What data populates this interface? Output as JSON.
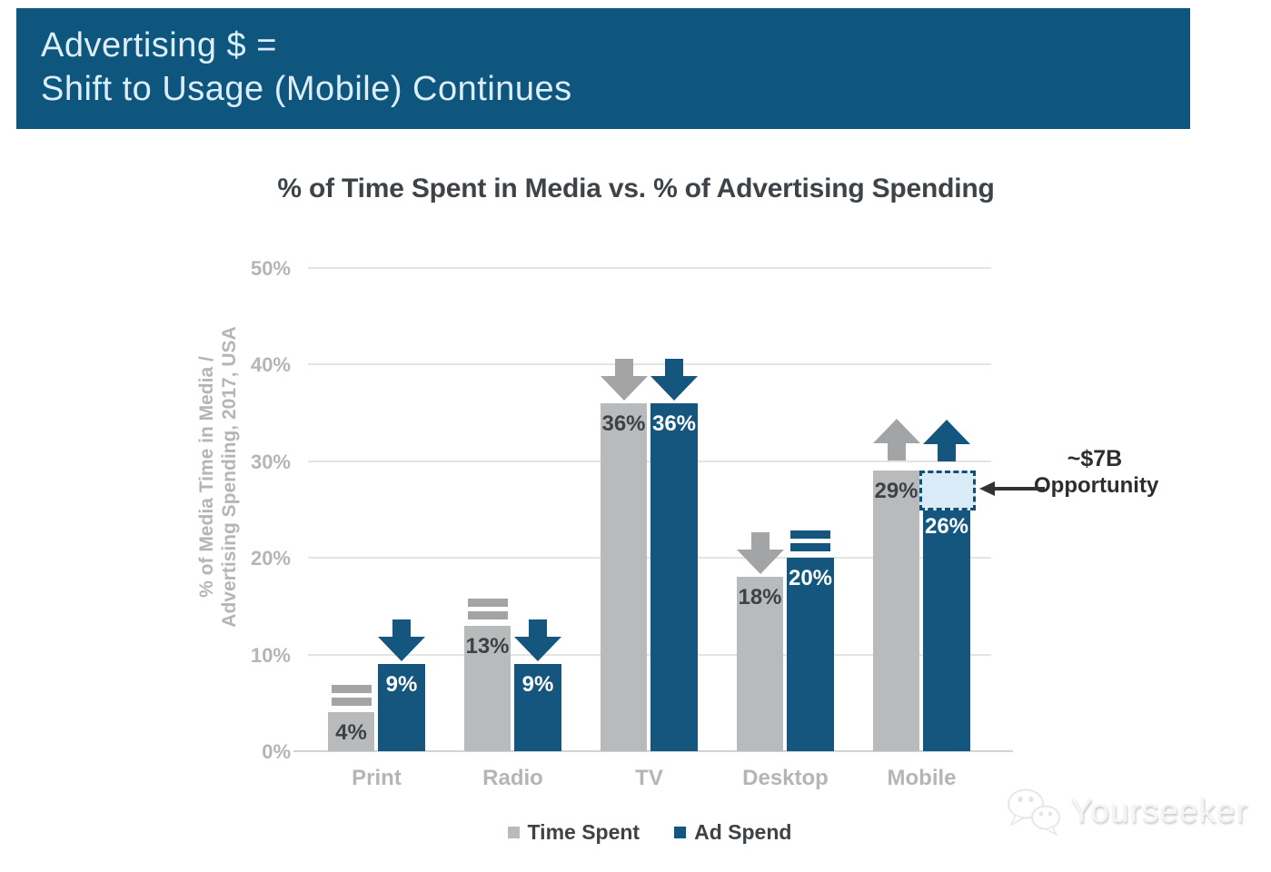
{
  "header": {
    "line1": "Advertising $ =",
    "line2": "Shift to Usage (Mobile) Continues",
    "background": "#0f567f",
    "text_color": "#dceefa"
  },
  "chart_data": {
    "type": "bar",
    "title": "% of Time Spent in Media vs. % of Advertising Spending",
    "ylabel": "% of Media Time in Media / Advertising Spending, 2017, USA",
    "ylabel_lines": [
      "% of Media Time in Media /",
      "Advertising Spending, 2017, USA"
    ],
    "categories": [
      "Print",
      "Radio",
      "TV",
      "Desktop",
      "Mobile"
    ],
    "series": [
      {
        "name": "Time Spent",
        "color": "#b9babb",
        "values": [
          4,
          13,
          36,
          18,
          29
        ],
        "value_labels": [
          "4%",
          "13%",
          "36%",
          "18%",
          "29%"
        ],
        "trends": [
          "flat",
          "flat",
          "down",
          "down",
          "up"
        ],
        "trend_color": "#a2a4a6",
        "label_color": "#3d4247"
      },
      {
        "name": "Ad Spend",
        "color": "#14567e",
        "values": [
          9,
          9,
          36,
          20,
          26
        ],
        "value_labels": [
          "9%",
          "9%",
          "36%",
          "20%",
          "26%"
        ],
        "trends": [
          "down",
          "down",
          "down",
          "flat",
          "up"
        ],
        "trend_color": "#14567e",
        "label_color": "#ffffff"
      }
    ],
    "ylim": [
      0,
      50
    ],
    "y_ticks": [
      {
        "value": 0,
        "label": "0%"
      },
      {
        "value": 10,
        "label": "10%"
      },
      {
        "value": 20,
        "label": "20%"
      },
      {
        "value": 30,
        "label": "30%"
      },
      {
        "value": 40,
        "label": "40%"
      },
      {
        "value": 50,
        "label": "50%"
      }
    ],
    "grid": true,
    "legend_position": "bottom",
    "annotation": {
      "category": "Mobile",
      "series": "Ad Spend",
      "from_value": 26,
      "to_value": 29,
      "line1": "~$7B",
      "line2": "Opportunity",
      "box_fill": "#d9ebf7",
      "box_border": "#114f73"
    }
  },
  "legend": {
    "items": [
      {
        "label": "Time Spent",
        "color": "#b9babb"
      },
      {
        "label": "Ad Spend",
        "color": "#14567e"
      }
    ]
  },
  "watermark": {
    "text": "Yourseeker"
  }
}
